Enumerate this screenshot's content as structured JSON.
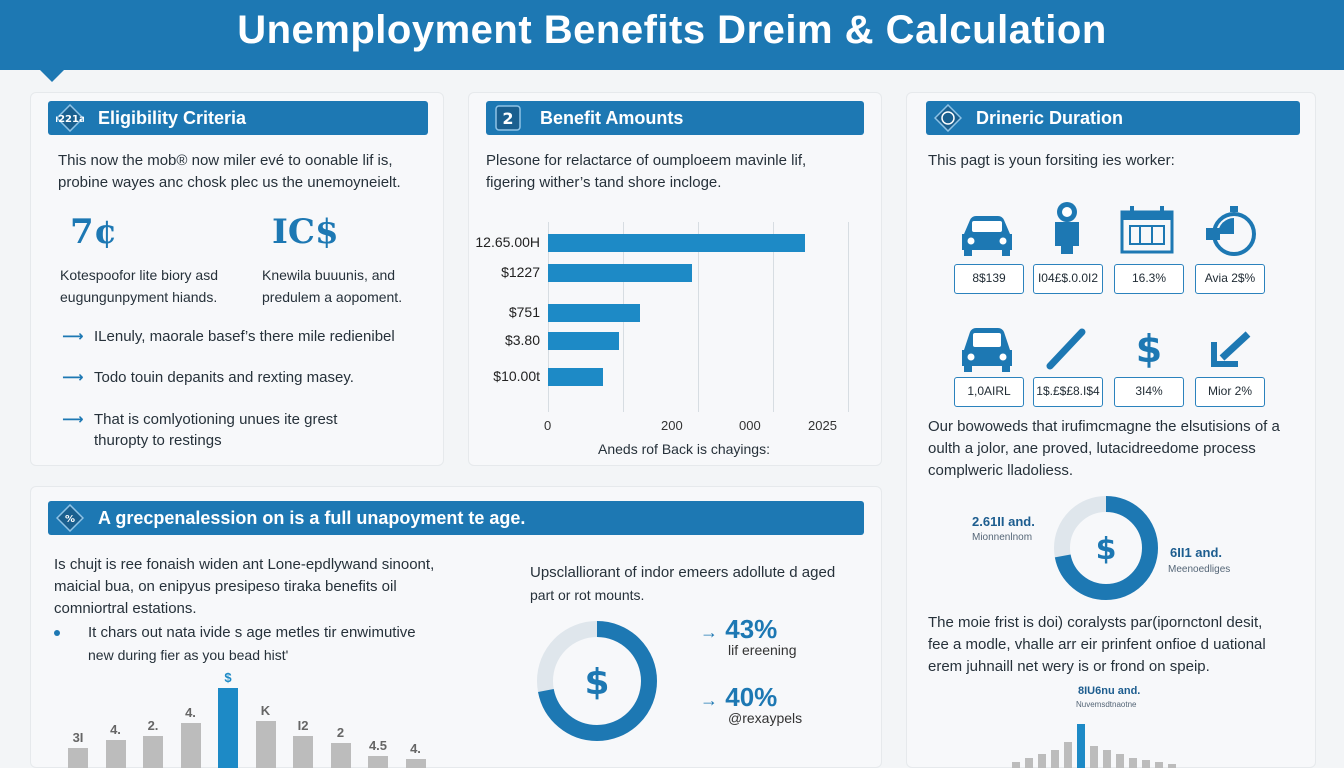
{
  "header": {
    "title": "Unemployment Benefits Dreim & Calculation"
  },
  "eligibility": {
    "heading": "Eligibility Criteria",
    "intro_line1": "This now the mob® now miler evé to oonable lif is,",
    "intro_line2": "probine wayes anc chosk plec us the unemoyneielt.",
    "sym1": "7¢",
    "sym2": "IC$",
    "cap1_line1": "Kotespoofor lite biory asd",
    "cap1_line2": "eugungunpyment hiands.",
    "cap2_line1": "Knewila buuunis, and",
    "cap2_line2": "predulem a aopoment.",
    "bullets": [
      {
        "line1": "ILenuly, maorale basef’s there mile redienibel",
        "line2": ""
      },
      {
        "line1": "Todo touin depanits and rexting masey.",
        "line2": ""
      },
      {
        "line1": "That is comlyotioning unues ite grest",
        "line2": "thuropty to restings"
      }
    ]
  },
  "benefit": {
    "heading": "Benefit Amounts",
    "intro_line1": "Plesone for relactarce of oumploeem mavinle lif,",
    "intro_line2": "figering wither’s tand shore incloge.",
    "caption": "Aneds rof Back is chayings:"
  },
  "chart_data": {
    "type": "bar",
    "orientation": "horizontal",
    "categories": [
      "12.65.00H",
      "$1227",
      "$751",
      "$3.80",
      "$10.00t"
    ],
    "values": [
      2140,
      1200,
      770,
      590,
      460
    ],
    "x_ticks": [
      "0",
      "200",
      "000",
      "2025"
    ],
    "xlabel": "Aneds rof Back is chayings:",
    "color": "#1d8ac6"
  },
  "duration": {
    "heading": "Drineric Duration",
    "intro": "This pagt is youn forsiting ies worker:",
    "icons_row1": [
      {
        "icon": "car-icon",
        "label": "8$139"
      },
      {
        "icon": "worker-icon",
        "label": "I04£$.0.0I2"
      },
      {
        "icon": "calendar-icon",
        "label": "16.3%"
      },
      {
        "icon": "stopwatch-icon",
        "label": "Avia 2$%"
      }
    ],
    "icons_row2": [
      {
        "icon": "car-icon",
        "label": "1,0AIRL"
      },
      {
        "icon": "pen-icon",
        "label": "1$.£$£8.I$4"
      },
      {
        "icon": "dollar-icon",
        "label": "3I4%"
      },
      {
        "icon": "arrow-down-left-icon",
        "label": "Mior 2%"
      }
    ],
    "para1_line1": "Our bowoweds that irufimcmagne the elsutisions of a",
    "para1_line2": "oulth a jolor, ane proved, lutacidreedome process",
    "para1_line3": "complweric lladoliess.",
    "donut_left_value": "2.61II and.",
    "donut_left_sub": "Mionnenlnom",
    "donut_right_value": "6II1 and.",
    "donut_right_sub": "Meenoedliges",
    "donut_fill": 0.72,
    "para2_line1": "The moie frist is doi) coralysts par(ipornctonl desit,",
    "para2_line2": "fee a modle, vhalle arr eir prinfent onfioe d uational",
    "para2_line3": "erem juhnaill net wery is or frond on speip.",
    "mini_label": "8IU6nu and.",
    "mini_sub": "Nuvemsdtnaotne"
  },
  "percentage": {
    "heading": "A grecpenalession on is a full unapoyment te age.",
    "para_line1": "Is chujt is ree fonaish widen ant Lone-epdlywand sinoont,",
    "para_line2": "maicial bua, on enipyus presipeso tiraka benefits oil",
    "para_line3": "comniortral estations.",
    "bullet_line1": "It chars out nata ivide s age metles tir enwimutive",
    "bullet_line2": "new during fier as you bead hist'",
    "bar_labels": [
      "3I",
      "4.",
      "2.",
      "4.",
      "$",
      "K",
      "I2",
      "2",
      "4.5",
      "4."
    ],
    "bar_values": [
      30,
      42,
      48,
      68,
      120,
      70,
      48,
      38,
      18,
      14
    ],
    "highlight_index": 4,
    "right_intro_line1": "Upsclalliorant of indor emeers adollute d aged",
    "right_intro_line2": "part or rot mounts.",
    "donut_fill": 0.72,
    "stat1_value": "43%",
    "stat1_label": "lif ereening",
    "stat2_value": "40%",
    "stat2_label": "@rexaypels"
  },
  "colors": {
    "primary": "#1d78b3",
    "bar": "#1d8ac6",
    "muted": "#bcbcbc"
  }
}
